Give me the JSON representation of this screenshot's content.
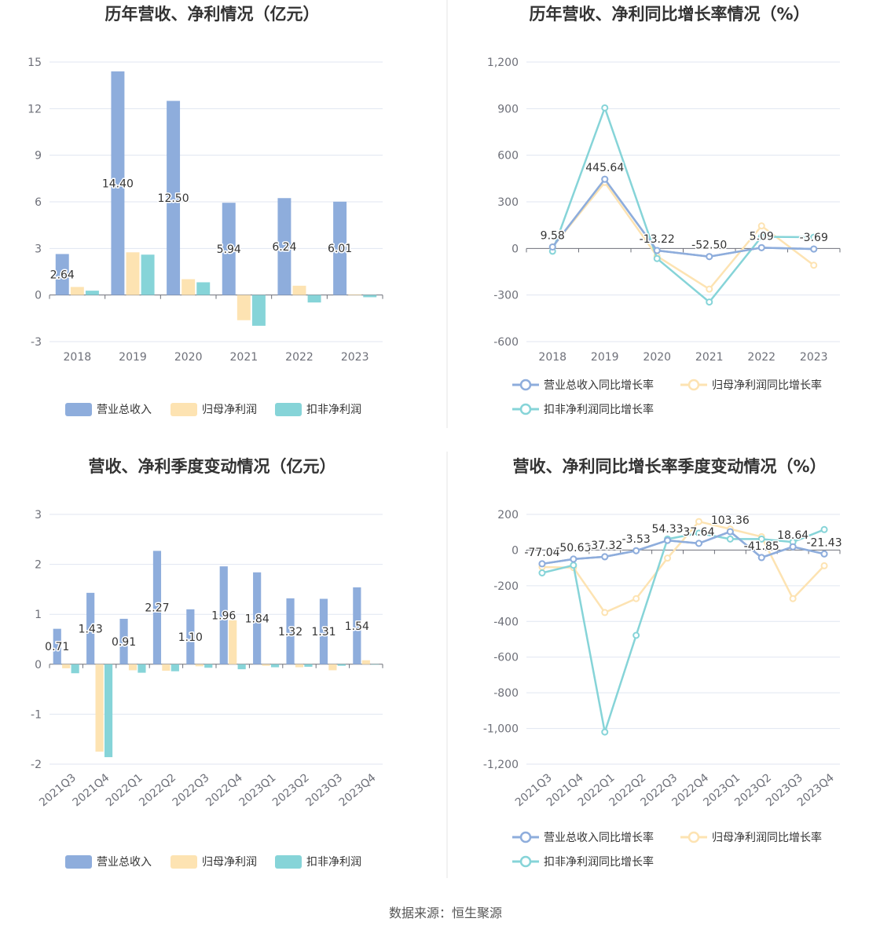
{
  "source": "数据来源：恒生聚源",
  "colors": {
    "revenue": "#8eaddc",
    "parent_profit": "#fde3b2",
    "deducted_profit": "#86d4d8"
  },
  "chart_data": [
    {
      "id": "annual",
      "type": "bar",
      "title": "历年营收、净利情况（亿元）",
      "categories": [
        "2018",
        "2019",
        "2020",
        "2021",
        "2022",
        "2023"
      ],
      "ylim": [
        -3,
        15
      ],
      "yticks": [
        -3,
        0,
        3,
        6,
        9,
        12,
        15
      ],
      "ytick_labels": [
        "-3",
        "0",
        "3",
        "6",
        "9",
        "12",
        "15"
      ],
      "series": [
        {
          "name": "营业总收入",
          "values": [
            2.64,
            14.4,
            12.5,
            5.94,
            6.24,
            6.01
          ],
          "labels": [
            "2.64",
            "14.40",
            "12.50",
            "5.94",
            "6.24",
            "6.01"
          ]
        },
        {
          "name": "归母净利润",
          "values": [
            0.52,
            2.75,
            1.02,
            -1.62,
            0.6,
            0.04
          ]
        },
        {
          "name": "扣非净利润",
          "values": [
            0.28,
            2.6,
            0.82,
            -1.98,
            -0.48,
            -0.14
          ]
        }
      ]
    },
    {
      "id": "annual_growth",
      "type": "line",
      "title": "历年营收、净利同比增长率情况（%）",
      "categories": [
        "2018",
        "2019",
        "2020",
        "2021",
        "2022",
        "2023"
      ],
      "ylim": [
        -600,
        1200
      ],
      "yticks": [
        -600,
        -300,
        0,
        300,
        600,
        900,
        1200
      ],
      "ytick_labels": [
        "-600",
        "-300",
        "0",
        "300",
        "600",
        "900",
        "1,200"
      ],
      "series": [
        {
          "name": "营业总收入同比增长率",
          "values": [
            9.58,
            445.64,
            -13.22,
            -52.5,
            5.09,
            -3.69
          ],
          "labels": [
            "9.58",
            "445.64",
            "-13.22",
            "-52.50",
            "5.09",
            "-3.69"
          ]
        },
        {
          "name": "归母净利润同比增长率",
          "values": [
            10,
            425,
            -50,
            -262,
            145,
            -108
          ]
        },
        {
          "name": "扣非净利润同比增长率",
          "values": [
            -18,
            905,
            -65,
            -345,
            75,
            72
          ]
        }
      ]
    },
    {
      "id": "quarterly",
      "type": "bar",
      "title": "营收、净利季度变动情况（亿元）",
      "categories": [
        "2021Q3",
        "2021Q4",
        "2022Q1",
        "2022Q2",
        "2022Q3",
        "2022Q4",
        "2023Q1",
        "2023Q2",
        "2023Q3",
        "2023Q4"
      ],
      "ylim": [
        -2,
        3
      ],
      "yticks": [
        -2,
        -1,
        0,
        1,
        2,
        3
      ],
      "ytick_labels": [
        "-2",
        "-1",
        "0",
        "1",
        "2",
        "3"
      ],
      "series": [
        {
          "name": "营业总收入",
          "values": [
            0.71,
            1.43,
            0.91,
            2.27,
            1.1,
            1.96,
            1.84,
            1.32,
            1.31,
            1.54
          ],
          "labels": [
            "0.71",
            "1.43",
            "0.91",
            "2.27",
            "1.10",
            "1.96",
            "1.84",
            "1.32",
            "1.31",
            "1.54"
          ]
        },
        {
          "name": "归母净利润",
          "values": [
            -0.08,
            -1.75,
            -0.12,
            -0.13,
            -0.04,
            0.88,
            -0.03,
            -0.06,
            -0.12,
            0.08
          ]
        },
        {
          "name": "扣非净利润",
          "values": [
            -0.18,
            -1.86,
            -0.17,
            -0.14,
            -0.07,
            -0.1,
            -0.06,
            -0.05,
            -0.03,
            0.0
          ]
        }
      ]
    },
    {
      "id": "quarterly_growth",
      "type": "line",
      "title": "营收、净利同比增长率季度变动情况（%）",
      "categories": [
        "2021Q3",
        "2021Q4",
        "2022Q1",
        "2022Q2",
        "2022Q3",
        "2022Q4",
        "2023Q1",
        "2023Q2",
        "2023Q3",
        "2023Q4"
      ],
      "ylim": [
        -1200,
        200
      ],
      "yticks": [
        -1200,
        -1000,
        -800,
        -600,
        -400,
        -200,
        0,
        200
      ],
      "ytick_labels": [
        "-1,200",
        "-1,000",
        "-800",
        "-600",
        "-400",
        "-200",
        "0",
        "200"
      ],
      "series": [
        {
          "name": "营业总收入同比增长率",
          "values": [
            -77.04,
            -50.63,
            -37.32,
            -3.53,
            54.33,
            37.64,
            103.36,
            -41.85,
            18.64,
            -21.43
          ],
          "labels": [
            "-77.04",
            "-50.63",
            "-37.32",
            "-3.53",
            "54.33",
            "37.64",
            "103.36",
            "-41.85",
            "18.64",
            "-21.43"
          ]
        },
        {
          "name": "归母净利润同比增长率",
          "values": [
            -95,
            -98,
            -350,
            -272,
            -45,
            160,
            118,
            75,
            -272,
            -88
          ]
        },
        {
          "name": "扣非净利润同比增长率",
          "values": [
            -128,
            -85,
            -1020,
            -478,
            62,
            95,
            62,
            62,
            45,
            115
          ]
        }
      ]
    }
  ]
}
